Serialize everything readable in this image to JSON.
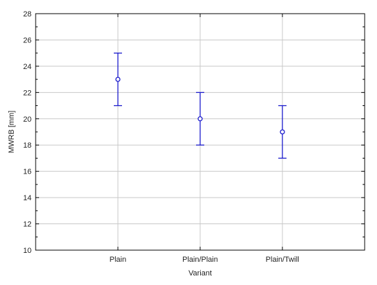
{
  "chart_data": {
    "type": "scatter",
    "subtype": "error-bar",
    "title": "",
    "xlabel": "Variant",
    "ylabel": "MWRB  [mm]",
    "categories": [
      "Plain",
      "Plain/Plain",
      "Plain/Twill"
    ],
    "series": [
      {
        "values": [
          23,
          20,
          19
        ],
        "lower": [
          21,
          18,
          17
        ],
        "upper": [
          25,
          22,
          21
        ]
      }
    ],
    "ylim": [
      10,
      28
    ],
    "yticks": [
      "10",
      "12",
      "14",
      "16",
      "18",
      "20",
      "22",
      "24",
      "26",
      "28"
    ],
    "grid": true,
    "marker": "open-circle",
    "colors": {
      "series": "#1a1acc",
      "grid": "#c8c8c8",
      "frame": "#000000",
      "background": "#ffffff"
    }
  }
}
